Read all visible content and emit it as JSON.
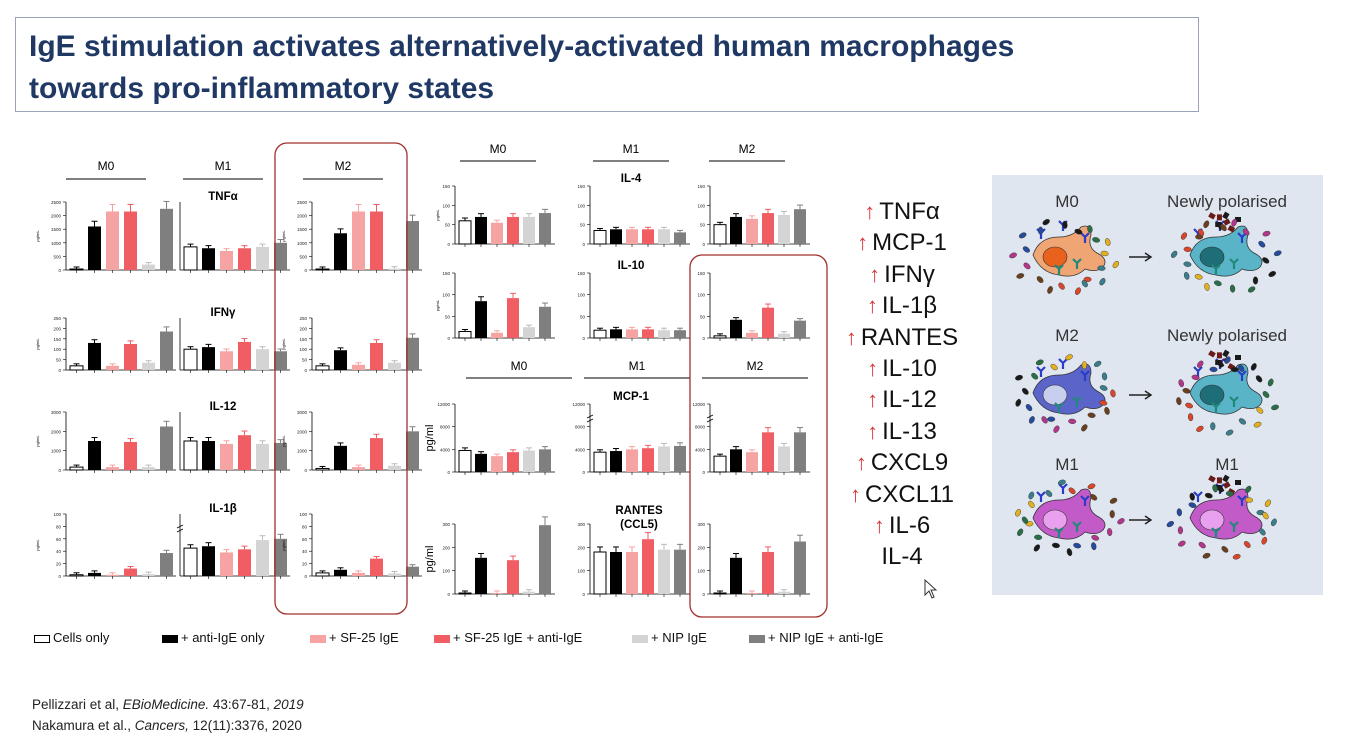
{
  "slide": {
    "title_line1": "IgE stimulation activates alternatively-activated human macrophages",
    "title_line2": "towards pro-inflammatory states"
  },
  "figure": {
    "colors": {
      "cells_only": "#ffffff",
      "anti_ige_only": "#000000",
      "sf25_ige": "#f6a3a3",
      "sf25_anti": "#f05d63",
      "nip_ige": "#d4d4d4",
      "nip_anti": "#7f7f7f",
      "m2_box": "#a0302c"
    },
    "left": {
      "groups": [
        "M0",
        "M1",
        "M2"
      ],
      "rows": [
        {
          "label": "TNFα",
          "yticks": [
            "2500",
            "2000",
            "1500",
            "1000",
            "500",
            "0"
          ],
          "ylabel": "pg/mL",
          "M0": [
            10,
            1600,
            2150,
            2150,
            200,
            2250
          ],
          "M1": [
            850,
            800,
            700,
            800,
            850,
            1000
          ],
          "M2": [
            20,
            1350,
            2150,
            2150,
            50,
            1800
          ],
          "m1_break": false,
          "max": 2500
        },
        {
          "label": "IFNγ",
          "yticks": [
            "250",
            "200",
            "150",
            "100",
            "50",
            "0"
          ],
          "ylabel": "pg/mL",
          "M0": [
            20,
            130,
            20,
            125,
            35,
            185
          ],
          "M1": [
            100,
            110,
            90,
            135,
            100,
            90
          ],
          "M2": [
            20,
            95,
            25,
            130,
            35,
            155
          ],
          "m1_break": false,
          "max": 250
        },
        {
          "label": "IL-12",
          "yticks": [
            "3000",
            "2000",
            "1000",
            "0"
          ],
          "ylabel": "pg/mL",
          "M0": [
            150,
            1500,
            150,
            1450,
            150,
            2250
          ],
          "M1": [
            1500,
            1500,
            1350,
            1800,
            1350,
            1400
          ],
          "M2": [
            80,
            1250,
            150,
            1650,
            220,
            2000
          ],
          "m1_break": false,
          "max": 3000
        },
        {
          "label": "IL-1β",
          "yticks": [
            "100",
            "80",
            "60",
            "40",
            "20",
            "0"
          ],
          "ylabel": "pg/mL",
          "M0": [
            2,
            5,
            2,
            12,
            3,
            37
          ],
          "M1": [
            45,
            48,
            38,
            43,
            58,
            60
          ],
          "M2": [
            5,
            10,
            5,
            28,
            4,
            15
          ],
          "m1_break": true,
          "max": 100
        }
      ]
    },
    "right": {
      "groups_top": [
        "M0",
        "M1",
        "M2"
      ],
      "groups_bottom": [
        "M0",
        "M1",
        "M2"
      ],
      "ylabel": "pg/ml",
      "rows": [
        {
          "label": "IL-4",
          "yticks": [
            "150",
            "100",
            "50",
            "0"
          ],
          "M0": [
            60,
            70,
            55,
            70,
            70,
            80
          ],
          "M1": [
            35,
            38,
            38,
            38,
            38,
            30
          ],
          "M2": [
            50,
            70,
            65,
            80,
            75,
            90
          ],
          "max": 150
        },
        {
          "label": "IL-10",
          "yticks": [
            "150",
            "100",
            "50",
            "0"
          ],
          "M0": [
            15,
            85,
            12,
            92,
            25,
            72
          ],
          "M1": [
            18,
            20,
            20,
            20,
            18,
            18
          ],
          "M2": [
            5,
            42,
            12,
            70,
            10,
            40
          ],
          "max": 150
        },
        {
          "label": "MCP-1",
          "yticks": [
            "12000",
            "8000",
            "4000",
            "0"
          ],
          "M0": [
            3800,
            3200,
            2800,
            3500,
            3800,
            4000
          ],
          "M1": [
            3500,
            3700,
            4000,
            4200,
            4500,
            4600
          ],
          "M2": [
            2800,
            4000,
            3500,
            7000,
            4500,
            7000
          ],
          "max": 12000
        },
        {
          "label": "RANTES (CCL5)",
          "yticks": [
            "300",
            "200",
            "100",
            "0"
          ],
          "M0": [
            2,
            155,
            2,
            145,
            10,
            295
          ],
          "M1": [
            180,
            180,
            180,
            235,
            190,
            190
          ],
          "M2": [
            2,
            155,
            2,
            180,
            10,
            225
          ],
          "max": 300
        }
      ]
    },
    "legend": [
      "Cells only",
      "+ anti-IgE only",
      "+ SF-25 IgE",
      "+ SF-25 IgE + anti-IgE",
      "+ NIP IgE",
      "+ NIP IgE + anti-IgE"
    ]
  },
  "markers": [
    "TNFα",
    "MCP-1",
    "IFNγ",
    "IL-1β",
    "RANTES",
    "IL-10",
    "IL-12",
    "IL-13",
    "CXCL9",
    "CXCL11",
    "IL-6",
    "IL-4"
  ],
  "panel": {
    "rows": [
      {
        "left": "M0",
        "right": "Newly polarised"
      },
      {
        "left": "M2",
        "right": "Newly polarised"
      },
      {
        "left": "M1",
        "right": "M1"
      }
    ],
    "colors": {
      "bg": "#dfe6f0",
      "m0": "#f0a574",
      "m0_nucleus": "#e8621e",
      "m2": "#5b64c8",
      "m2_nucleus": "#c8cfee",
      "m1": "#c25bc8",
      "m1_nucleus": "#e9a0ee",
      "new": "#5ab4c8",
      "new_nucleus": "#1e6e78",
      "receptor_blue": "#2a3cc8",
      "receptor_teal": "#1f8a7a"
    }
  },
  "references": {
    "ref1_authors": "Pellizzari et al, ",
    "ref1_journal": "EBioMedicine.",
    "ref1_detail": " 43:67-81, ",
    "ref1_year": "2019",
    "ref2_authors": "Nakamura et al., ",
    "ref2_journal": "Cancers,",
    "ref2_detail": " 12(11):3376, 2020"
  }
}
